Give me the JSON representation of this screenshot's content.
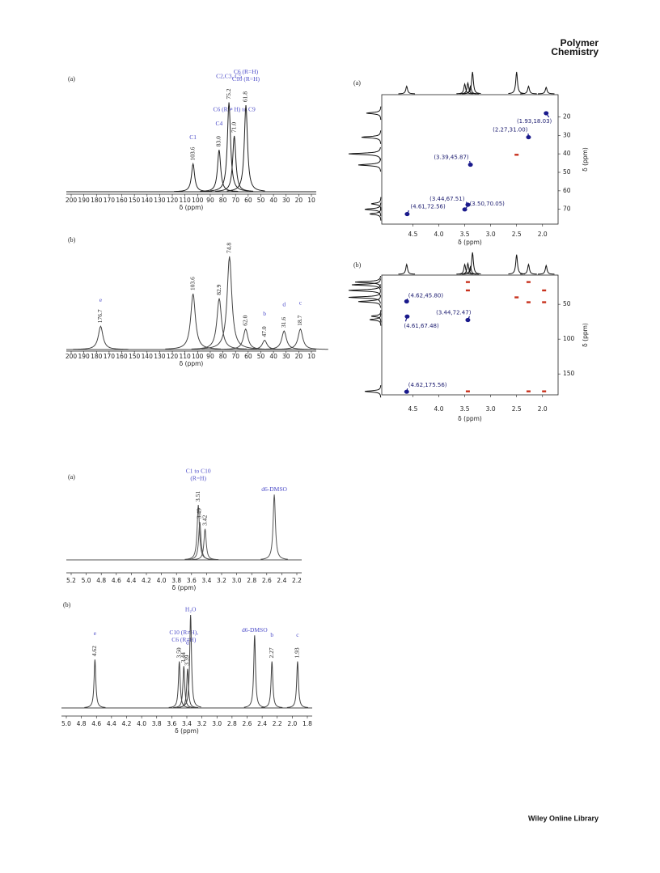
{
  "header": {
    "line1": "Polymer",
    "line2": "Chemistry"
  },
  "footer": {
    "text": "Wiley Online Library"
  },
  "chart_data": [
    {
      "type": "spectrum",
      "panel": "(a)",
      "xlabel": "δ (ppm)",
      "xlim": [
        200,
        10
      ],
      "xticks": [
        200,
        190,
        180,
        170,
        160,
        150,
        140,
        130,
        120,
        110,
        100,
        90,
        80,
        70,
        60,
        50,
        40,
        30,
        20,
        10
      ],
      "peaks": {
        "x": [
          103.6,
          {
            "value": 83,
            "label": "83.0"
          },
          75.2,
          {
            "value": 71,
            "label": "71.0"
          },
          61.8
        ],
        "values": [
          0.3,
          0.45,
          0.96,
          0.6,
          0.93
        ],
        "notes": [
          "C1",
          "C4",
          "C2,C3, C5",
          "C6 (R ≠ H) to C9",
          [
            "C6 (R=H)",
            "C10 (R=H)"
          ]
        ]
      }
    },
    {
      "type": "spectrum",
      "panel": "(b)",
      "xlabel": "δ (ppm)",
      "xlim": [
        200,
        10
      ],
      "xticks": [
        200,
        190,
        180,
        170,
        160,
        150,
        140,
        130,
        120,
        110,
        100,
        90,
        80,
        70,
        60,
        50,
        40,
        30,
        20,
        10
      ],
      "peaks": {
        "x": [
          176.7,
          103.6,
          82.9,
          74.8,
          {
            "value": 62,
            "label": "62.0"
          },
          {
            "value": 47,
            "label": "47.0"
          },
          31.6,
          18.7
        ],
        "values": [
          0.25,
          0.6,
          0.55,
          1.0,
          0.22,
          0.1,
          0.2,
          0.22
        ],
        "notes": [
          "e",
          null,
          null,
          null,
          null,
          "b",
          "d",
          "c"
        ]
      }
    },
    {
      "type": "spectrum",
      "panel": "(a)",
      "xlabel": "δ (ppm)",
      "xlim": [
        5.2,
        2.2
      ],
      "xticks": [
        5.2,
        {
          "value": 5,
          "label": "5.0"
        },
        4.8,
        4.6,
        4.4,
        4.2,
        {
          "value": 4,
          "label": "4.0"
        },
        3.8,
        3.6,
        3.4,
        3.2,
        {
          "value": 3,
          "label": "3.0"
        },
        2.8,
        2.6,
        2.4,
        2.2
      ],
      "peaks": {
        "x": [
          3.51,
          3.49,
          3.42
        ],
        "values": [
          0.8,
          0.55,
          0.45
        ],
        "notes": [
          [
            "C1 to C10",
            "(R=H)"
          ],
          null,
          null
        ]
      },
      "other_peaks": {
        "x": [
          2.5
        ],
        "values": [
          0.95
        ],
        "notes": [
          "d6-DMSO"
        ]
      }
    },
    {
      "type": "spectrum",
      "panel": "(b)",
      "xlabel": "δ (ppm)",
      "xlim": [
        5.0,
        1.8
      ],
      "xticks": [
        {
          "value": 5,
          "label": "5.0"
        },
        4.8,
        4.6,
        4.4,
        4.2,
        {
          "value": 4,
          "label": "4.0"
        },
        3.8,
        3.6,
        3.4,
        3.2,
        {
          "value": 3,
          "label": "3.0"
        },
        2.8,
        2.6,
        2.4,
        2.2,
        {
          "value": 2,
          "label": "2.0"
        },
        1.8
      ],
      "peaks": {
        "x": [
          4.62,
          {
            "value": 3.5,
            "label": "3.50"
          },
          3.44,
          3.39,
          2.27,
          1.93
        ],
        "values": [
          0.52,
          0.5,
          0.45,
          0.42,
          0.5,
          0.5
        ],
        "notes": [
          "e",
          null,
          [
            "C10 (R≠H),",
            "C6 (R≠H)"
          ],
          "d",
          "b",
          "c"
        ]
      },
      "other_peaks": {
        "x": [
          3.35,
          2.5
        ],
        "values": [
          1.0,
          0.78
        ],
        "notes": [
          "H₂O",
          "d6-DMSO"
        ]
      }
    },
    {
      "type": "hsqc",
      "panel": "(a)",
      "xlabel": "δ (ppm)",
      "ylabel": "δ (ppm)",
      "xlim": [
        5.1,
        1.7
      ],
      "ylim": [
        8,
        78
      ],
      "xticks": [
        4.5,
        {
          "value": 4,
          "label": "4.0"
        },
        3.5,
        {
          "value": 3,
          "label": "3.0"
        },
        2.5,
        {
          "value": 2,
          "label": "2.0"
        }
      ],
      "yticks": [
        20,
        30,
        40,
        50,
        60,
        70
      ],
      "top_projection": {
        "x": [
          4.62,
          3.5,
          3.44,
          3.39,
          3.35,
          2.5,
          2.27,
          1.93
        ],
        "values": [
          0.35,
          0.45,
          0.5,
          0.35,
          1.0,
          1.0,
          0.35,
          0.3
        ]
      },
      "left_projection": {
        "y": [
          18,
          31,
          40,
          46,
          67,
          70,
          72.5
        ],
        "values": [
          0.45,
          0.6,
          1.0,
          0.7,
          0.3,
          0.5,
          0.35
        ]
      },
      "series": [
        {
          "color": "#1a1a8c",
          "x": [
            1.93,
            2.27,
            3.39,
            3.44,
            3.5,
            4.61
          ],
          "values": [
            18.03,
            31,
            45.87,
            67.51,
            70.05,
            72.56
          ],
          "value_labels": [
            "(1.93,18.03)",
            "(2.27,31.00)",
            "(3.39,45.87)",
            "(3.44,67.51)",
            "(3.50,70.05)",
            "(4.61,72.56)"
          ]
        },
        {
          "color": "#c8321e",
          "x": [
            2.5
          ],
          "values": [
            40.5
          ]
        }
      ]
    },
    {
      "type": "hsqc",
      "panel": "(b)",
      "xlabel": "δ (ppm)",
      "ylabel": "δ (ppm)",
      "xlim": [
        5.1,
        1.7
      ],
      "ylim": [
        8,
        180
      ],
      "xticks": [
        4.5,
        {
          "value": 4,
          "label": "4.0"
        },
        3.5,
        {
          "value": 3,
          "label": "3.0"
        },
        2.5,
        {
          "value": 2,
          "label": "2.0"
        }
      ],
      "yticks": [
        50,
        100,
        150
      ],
      "top_projection": {
        "x": [
          4.62,
          3.5,
          3.44,
          3.39,
          3.35,
          2.5,
          2.27,
          1.93
        ],
        "values": [
          0.45,
          0.45,
          0.5,
          0.35,
          1.0,
          0.9,
          0.45,
          0.4
        ]
      },
      "left_projection": {
        "y": [
          18,
          22,
          30,
          40,
          46,
          67,
          72,
          175
        ],
        "values": [
          0.8,
          0.9,
          1.0,
          1.0,
          0.7,
          0.3,
          0.35,
          0.5
        ]
      },
      "series": [
        {
          "color": "#1a1a8c",
          "x": [
            4.62,
            4.61,
            3.44,
            4.62
          ],
          "values": [
            45.8,
            67.48,
            72.47,
            175.56
          ],
          "value_labels": [
            "(4.62,45.80)",
            "(4.61,67.48)",
            "(3.44,72.47)",
            "(4.62,175.56)"
          ]
        },
        {
          "color": "#c8321e",
          "x": [
            3.44,
            3.44,
            2.5,
            2.27,
            2.27,
            1.97,
            1.97,
            3.44,
            2.27,
            1.97
          ],
          "values": [
            18,
            30,
            40,
            18,
            47,
            30,
            47,
            175,
            175,
            175
          ]
        }
      ]
    }
  ]
}
